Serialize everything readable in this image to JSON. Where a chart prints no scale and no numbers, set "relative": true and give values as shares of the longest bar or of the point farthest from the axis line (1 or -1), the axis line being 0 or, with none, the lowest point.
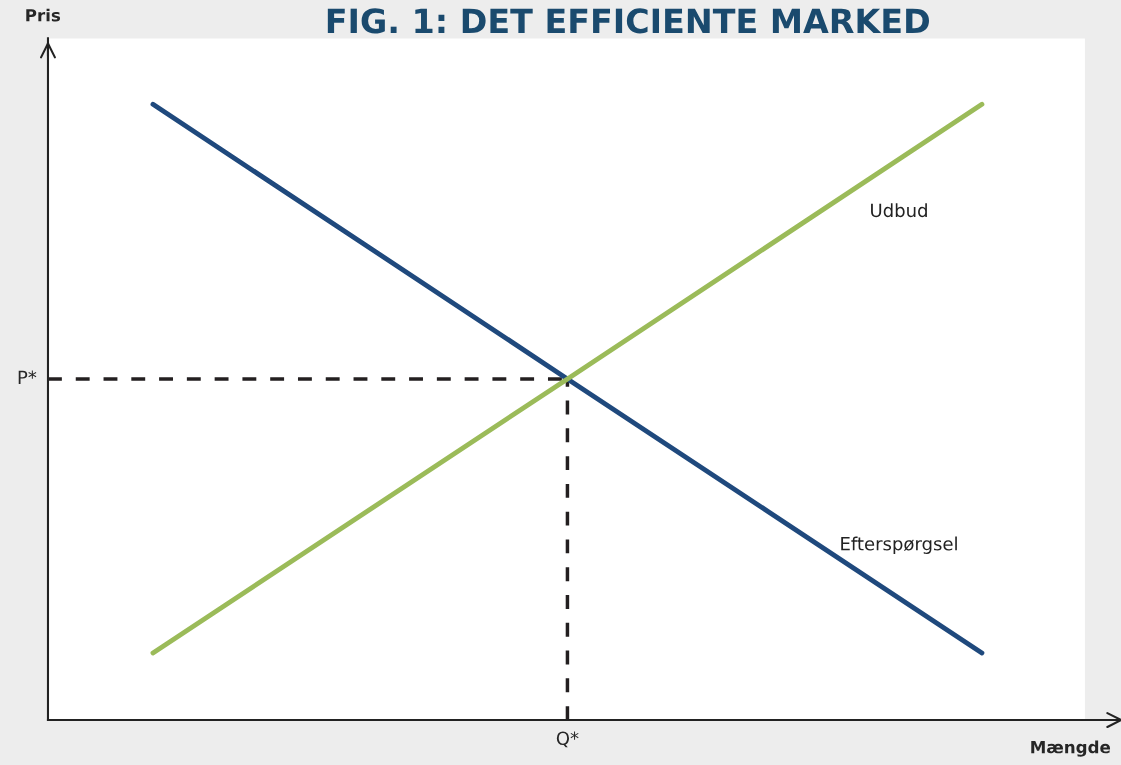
{
  "chart_data": {
    "type": "line",
    "title": "FIG. 1: DET EFFICIENTE MARKED",
    "xlabel": "Mængde",
    "ylabel": "Pris",
    "relative": true,
    "categories": [
      null,
      null,
      null
    ],
    "series": [
      {
        "name": "Efterspørgsel",
        "color": "#1f497d",
        "values": [
          1,
          0.554,
          0.109
        ]
      },
      {
        "name": "Udbud",
        "color": "#9bbb59",
        "values": [
          0.109,
          0.554,
          1
        ]
      }
    ],
    "ref_lines": [
      {
        "axis": "y",
        "value": 0.554,
        "label": "P*",
        "color": "#231f20",
        "line_style": "dashed"
      },
      {
        "axis": "x",
        "label": "Q*",
        "color": "#231f20",
        "line_style": "dashed"
      }
    ],
    "marker": "none"
  }
}
